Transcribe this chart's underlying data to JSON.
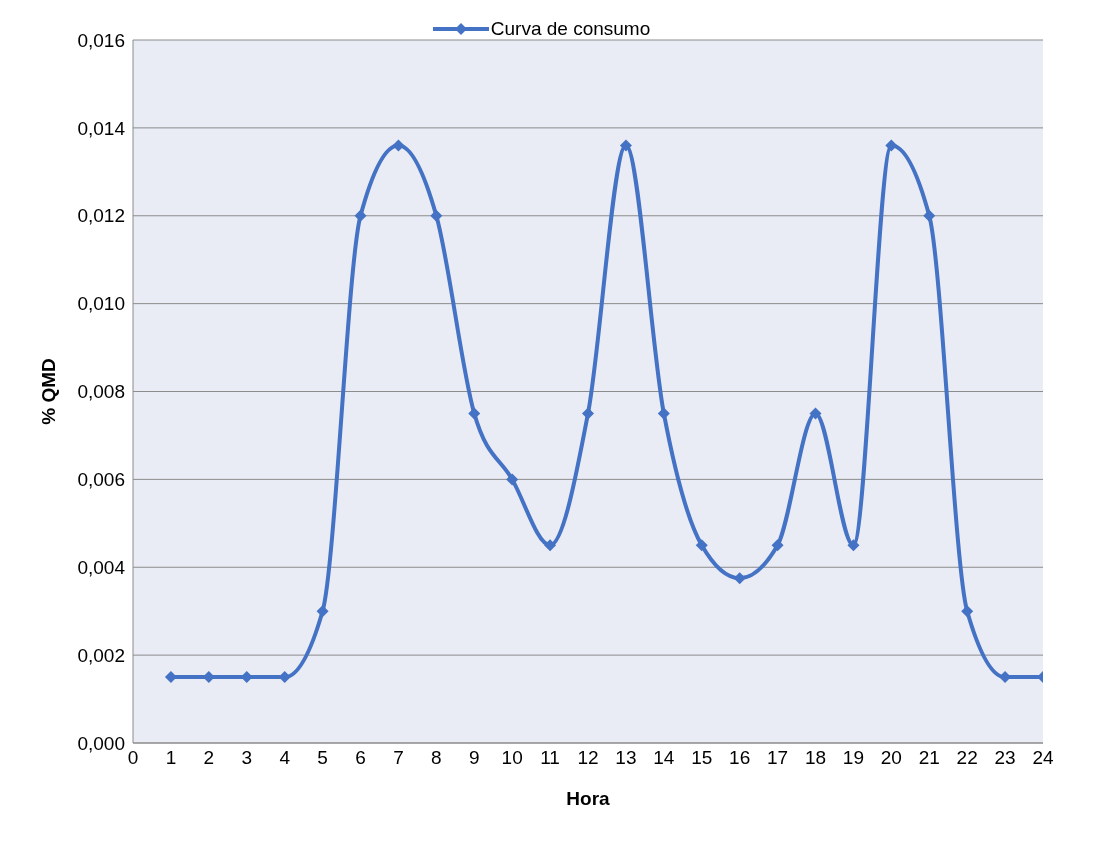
{
  "chart_data": {
    "type": "line",
    "xlabel": "Hora",
    "ylabel": "% QMD",
    "x": [
      1,
      2,
      3,
      4,
      5,
      6,
      7,
      8,
      9,
      10,
      11,
      12,
      13,
      14,
      15,
      16,
      17,
      18,
      19,
      20,
      21,
      22,
      23,
      24
    ],
    "series": [
      {
        "name": "Curva de consumo",
        "color": "#4472c4",
        "values": [
          0.0015,
          0.0015,
          0.0015,
          0.0015,
          0.003,
          0.012,
          0.0136,
          0.012,
          0.0075,
          0.006,
          0.0045,
          0.0075,
          0.0136,
          0.0075,
          0.0045,
          0.00375,
          0.0045,
          0.0075,
          0.0045,
          0.0136,
          0.012,
          0.003,
          0.0015,
          0.0015
        ]
      }
    ],
    "xlim": [
      0,
      24
    ],
    "xticks": [
      0,
      1,
      2,
      3,
      4,
      5,
      6,
      7,
      8,
      9,
      10,
      11,
      12,
      13,
      14,
      15,
      16,
      17,
      18,
      19,
      20,
      21,
      22,
      23,
      24
    ],
    "ylim": [
      0,
      0.016
    ],
    "yticks": [
      {
        "value": 0,
        "label": "0,000"
      },
      {
        "value": 0.002,
        "label": "0,002"
      },
      {
        "value": 0.004,
        "label": "0,004"
      },
      {
        "value": 0.006,
        "label": "0,006"
      },
      {
        "value": 0.008,
        "label": "0,008"
      },
      {
        "value": 0.01,
        "label": "0,010"
      },
      {
        "value": 0.012,
        "label": "0,012"
      },
      {
        "value": 0.014,
        "label": "0,014"
      },
      {
        "value": 0.016,
        "label": "0,016"
      }
    ],
    "grid": "y",
    "legend": "top",
    "marker": "diamond",
    "line_style": "solid"
  }
}
